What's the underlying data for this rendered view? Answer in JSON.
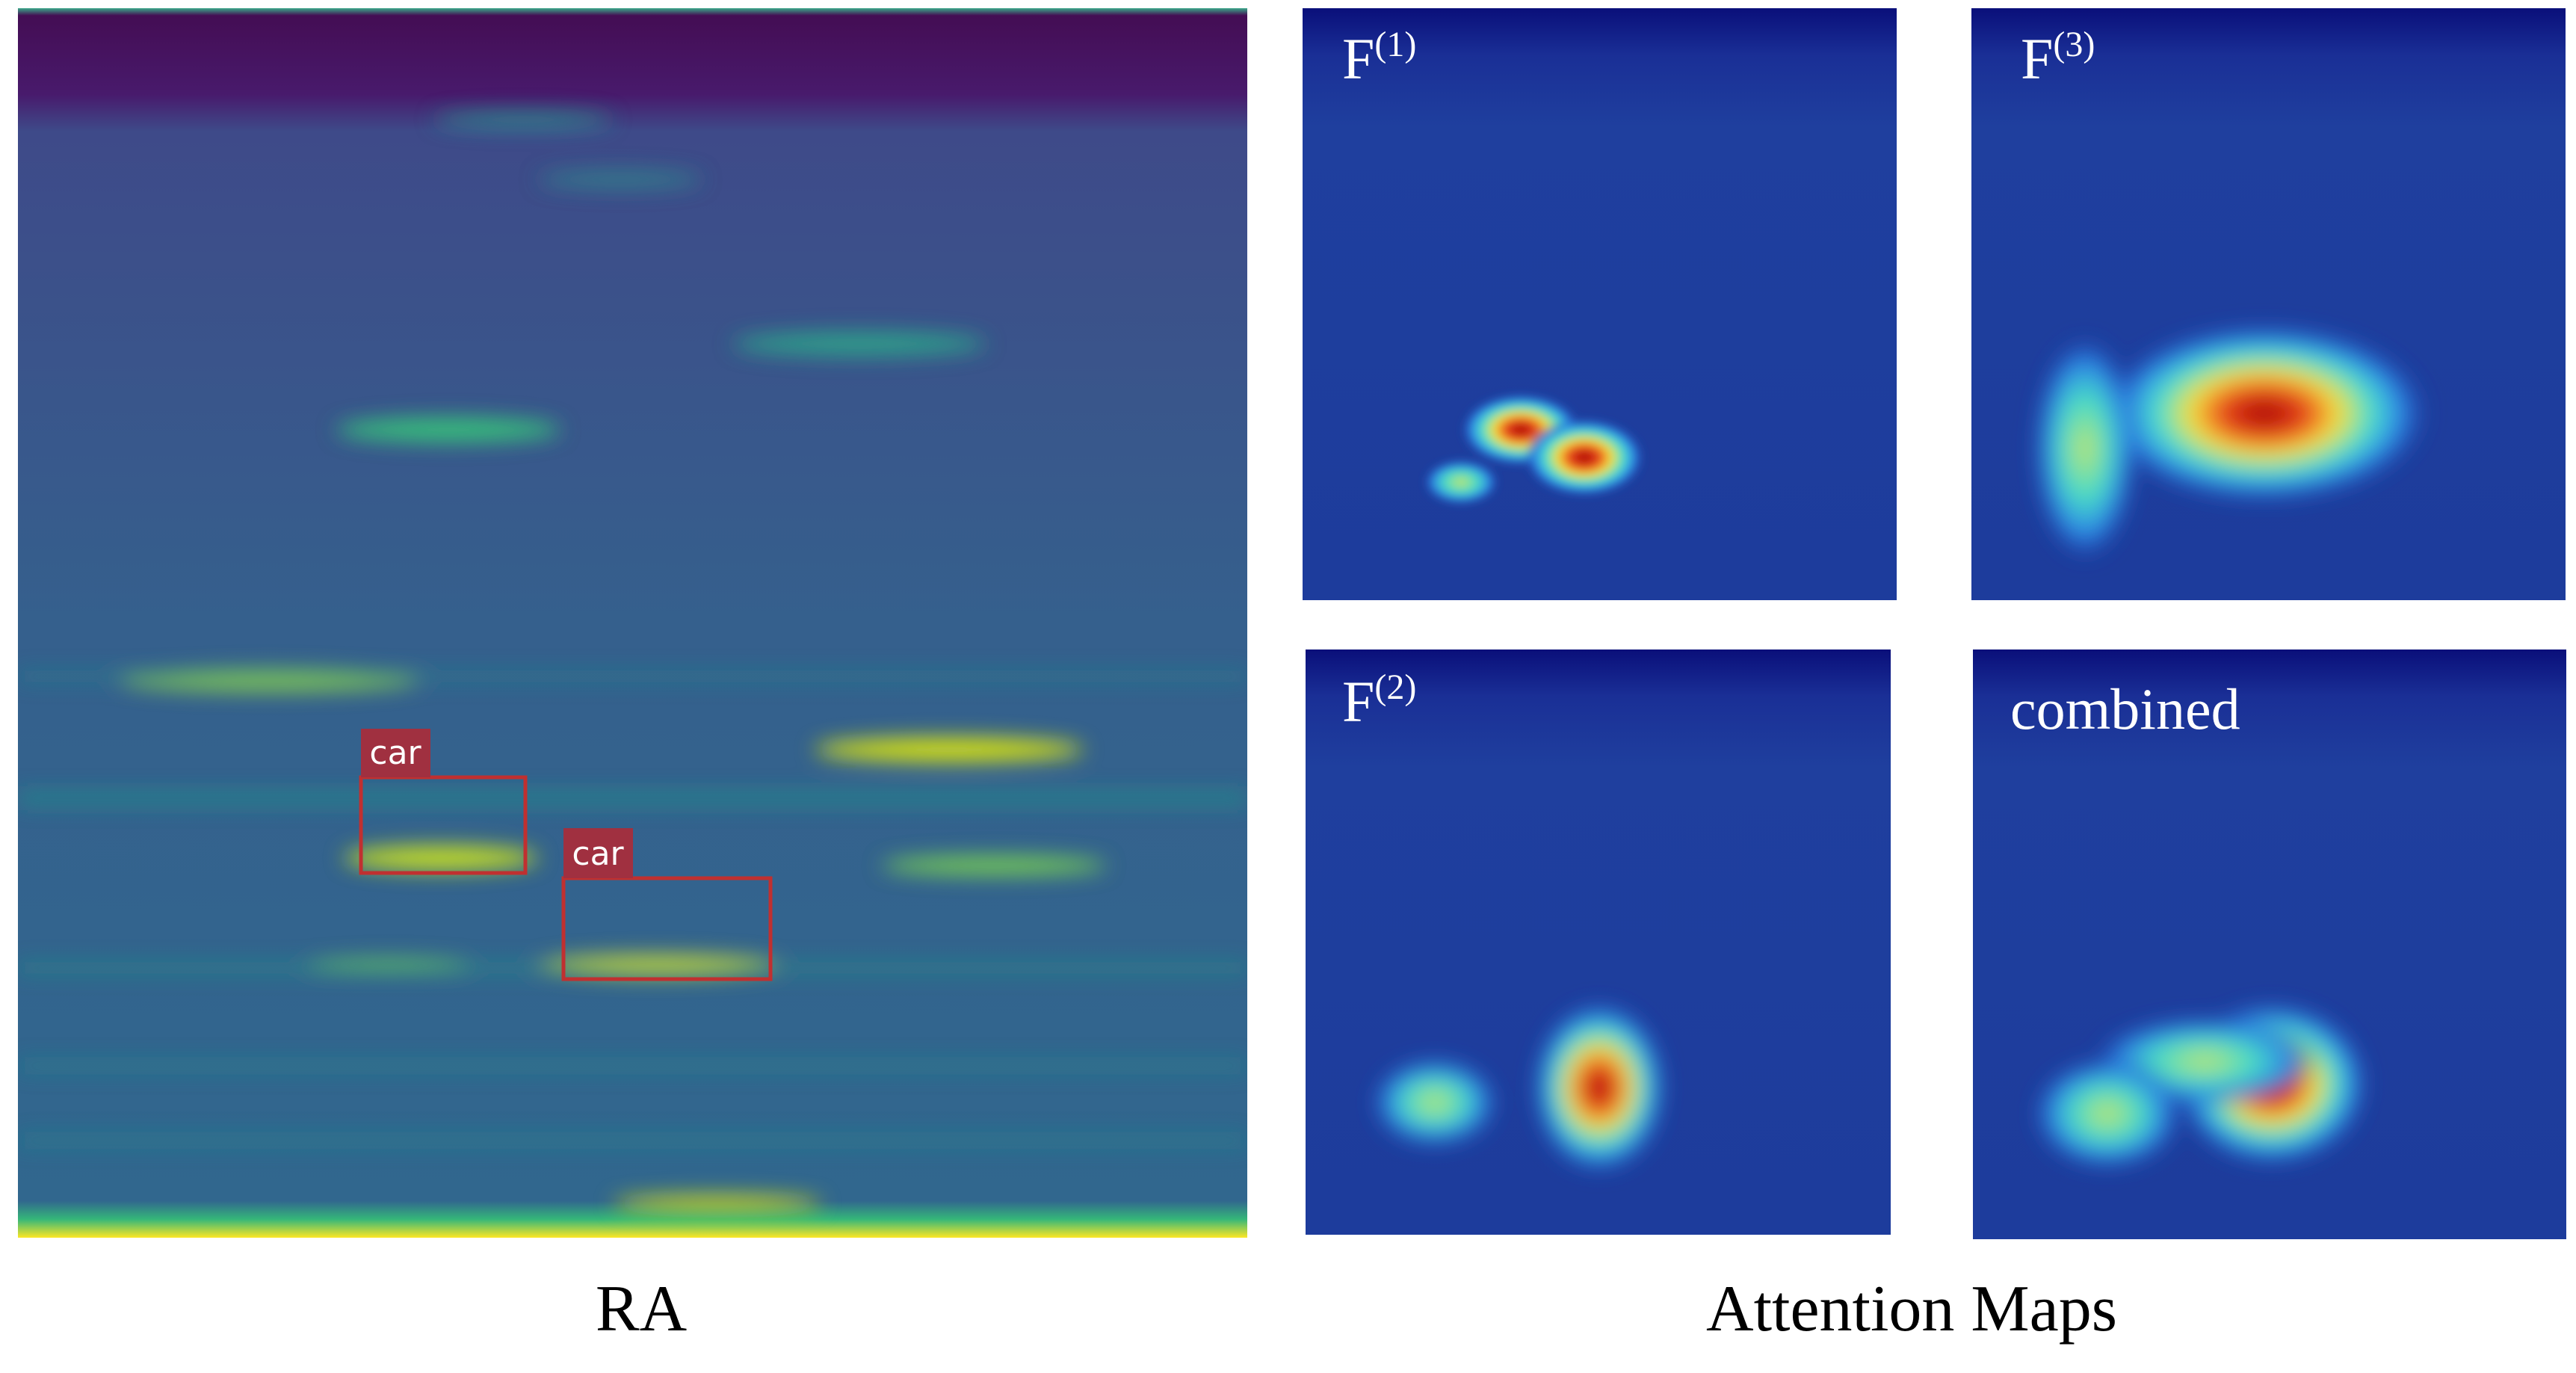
{
  "figure": {
    "left_panel": {
      "caption": "RA",
      "detections": [
        {
          "label": "car"
        },
        {
          "label": "car"
        }
      ]
    },
    "right_panel": {
      "caption": "Attention Maps",
      "maps": [
        {
          "name": "F",
          "superscript": "(1)"
        },
        {
          "name": "F",
          "superscript": "(3)"
        },
        {
          "name": "F",
          "superscript": "(2)"
        },
        {
          "name": "combined"
        }
      ]
    }
  }
}
